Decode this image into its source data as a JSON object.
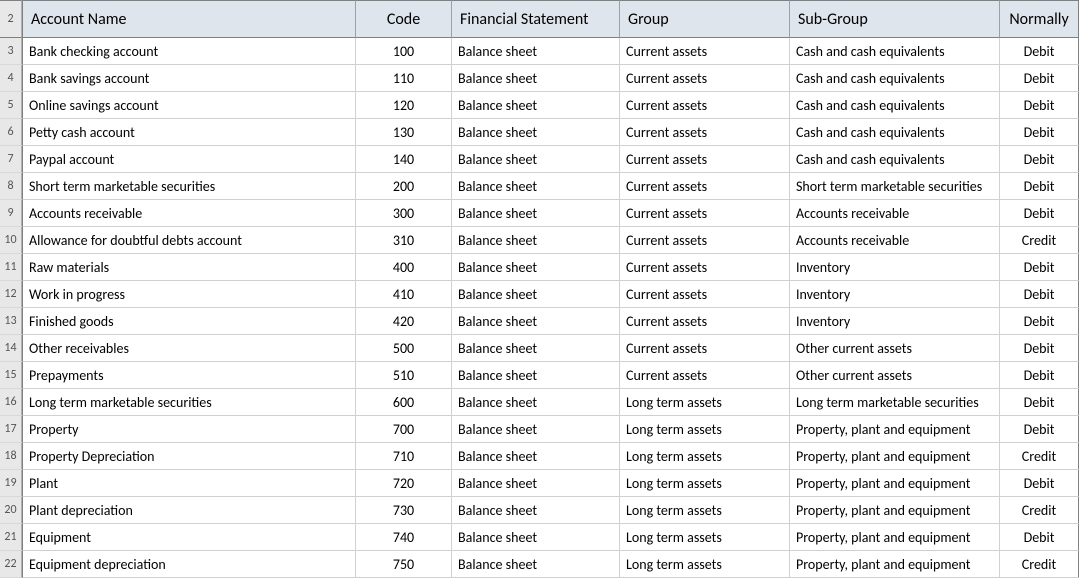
{
  "colors": {
    "header_bg": "#dfe5ec",
    "rowhead_bg": "#e8e8e8",
    "grid_light": "#d0d0d0",
    "grid_dark": "#808080",
    "text": "#000000"
  },
  "header_row_number": "2",
  "columns": [
    {
      "label": "Account Name",
      "align": "left"
    },
    {
      "label": "Code",
      "align": "center"
    },
    {
      "label": "Financial Statement",
      "align": "left"
    },
    {
      "label": "Group",
      "align": "left"
    },
    {
      "label": "Sub-Group",
      "align": "left"
    },
    {
      "label": "Normally",
      "align": "center"
    }
  ],
  "start_row_number": 3,
  "rows": [
    {
      "name": "Bank checking account",
      "code": "100",
      "fs": "Balance sheet",
      "group": "Current assets",
      "subgroup": "Cash and cash equivalents",
      "normally": "Debit"
    },
    {
      "name": "Bank savings account",
      "code": "110",
      "fs": "Balance sheet",
      "group": "Current assets",
      "subgroup": "Cash and cash equivalents",
      "normally": "Debit"
    },
    {
      "name": "Online savings account",
      "code": "120",
      "fs": "Balance sheet",
      "group": "Current assets",
      "subgroup": "Cash and cash equivalents",
      "normally": "Debit"
    },
    {
      "name": "Petty cash account",
      "code": "130",
      "fs": "Balance sheet",
      "group": "Current assets",
      "subgroup": "Cash and cash equivalents",
      "normally": "Debit"
    },
    {
      "name": "Paypal account",
      "code": "140",
      "fs": "Balance sheet",
      "group": "Current assets",
      "subgroup": "Cash and cash equivalents",
      "normally": "Debit"
    },
    {
      "name": "Short term marketable securities",
      "code": "200",
      "fs": "Balance sheet",
      "group": "Current assets",
      "subgroup": "Short term marketable securities",
      "normally": "Debit"
    },
    {
      "name": "Accounts receivable",
      "code": "300",
      "fs": "Balance sheet",
      "group": "Current assets",
      "subgroup": "Accounts receivable",
      "normally": "Debit"
    },
    {
      "name": "Allowance for doubtful debts account",
      "code": "310",
      "fs": "Balance sheet",
      "group": "Current assets",
      "subgroup": "Accounts receivable",
      "normally": "Credit"
    },
    {
      "name": "Raw materials",
      "code": "400",
      "fs": "Balance sheet",
      "group": "Current assets",
      "subgroup": "Inventory",
      "normally": "Debit"
    },
    {
      "name": "Work in progress",
      "code": "410",
      "fs": "Balance sheet",
      "group": "Current assets",
      "subgroup": "Inventory",
      "normally": "Debit"
    },
    {
      "name": "Finished goods",
      "code": "420",
      "fs": "Balance sheet",
      "group": "Current assets",
      "subgroup": "Inventory",
      "normally": "Debit"
    },
    {
      "name": "Other receivables",
      "code": "500",
      "fs": "Balance sheet",
      "group": "Current assets",
      "subgroup": "Other current assets",
      "normally": "Debit"
    },
    {
      "name": "Prepayments",
      "code": "510",
      "fs": "Balance sheet",
      "group": "Current assets",
      "subgroup": "Other current assets",
      "normally": "Debit"
    },
    {
      "name": "Long term marketable securities",
      "code": "600",
      "fs": "Balance sheet",
      "group": "Long term assets",
      "subgroup": "Long term marketable securities",
      "normally": "Debit"
    },
    {
      "name": "Property",
      "code": "700",
      "fs": "Balance sheet",
      "group": "Long term assets",
      "subgroup": "Property, plant and equipment",
      "normally": "Debit"
    },
    {
      "name": "Property Depreciation",
      "code": "710",
      "fs": "Balance sheet",
      "group": "Long term assets",
      "subgroup": "Property, plant and equipment",
      "normally": "Credit"
    },
    {
      "name": "Plant",
      "code": "720",
      "fs": "Balance sheet",
      "group": "Long term assets",
      "subgroup": "Property, plant and equipment",
      "normally": "Debit"
    },
    {
      "name": "Plant depreciation",
      "code": "730",
      "fs": "Balance sheet",
      "group": "Long term assets",
      "subgroup": "Property, plant and equipment",
      "normally": "Credit"
    },
    {
      "name": "Equipment",
      "code": "740",
      "fs": "Balance sheet",
      "group": "Long term assets",
      "subgroup": "Property, plant and equipment",
      "normally": "Debit"
    },
    {
      "name": "Equipment depreciation",
      "code": "750",
      "fs": "Balance sheet",
      "group": "Long term assets",
      "subgroup": "Property, plant and equipment",
      "normally": "Credit"
    }
  ]
}
